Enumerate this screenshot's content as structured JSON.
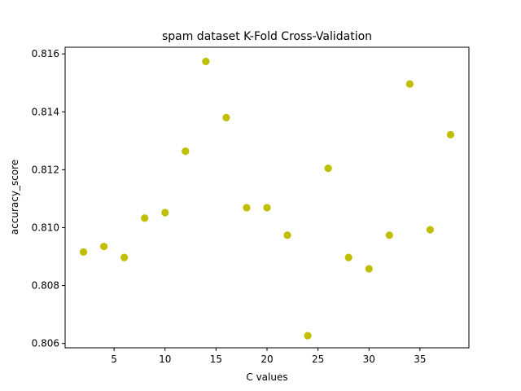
{
  "chart_data": {
    "type": "scatter",
    "title": "spam dataset K-Fold Cross-Validation",
    "xlabel": "C values",
    "ylabel": "accuracy_score",
    "xlim": [
      0.2,
      39.8
    ],
    "ylim": [
      0.80585,
      0.81623
    ],
    "x_ticks": [
      5,
      10,
      15,
      20,
      25,
      30,
      35
    ],
    "y_ticks": [
      0.806,
      0.808,
      0.81,
      0.812,
      0.814,
      0.816
    ],
    "y_tick_labels": [
      "0.806",
      "0.808",
      "0.810",
      "0.812",
      "0.814",
      "0.816"
    ],
    "marker_color": "#bfbf00",
    "grid": false,
    "series": [
      {
        "x": [
          2,
          4,
          6,
          8,
          10,
          12,
          14,
          16,
          18,
          20,
          22,
          24,
          26,
          28,
          30,
          32,
          34,
          36,
          38
        ],
        "y": [
          0.80916,
          0.80935,
          0.80897,
          0.81033,
          0.81052,
          0.81264,
          0.81574,
          0.8138,
          0.81069,
          0.81069,
          0.80974,
          0.80627,
          0.81205,
          0.80897,
          0.80858,
          0.80974,
          0.81496,
          0.80993,
          0.81321
        ]
      }
    ]
  }
}
